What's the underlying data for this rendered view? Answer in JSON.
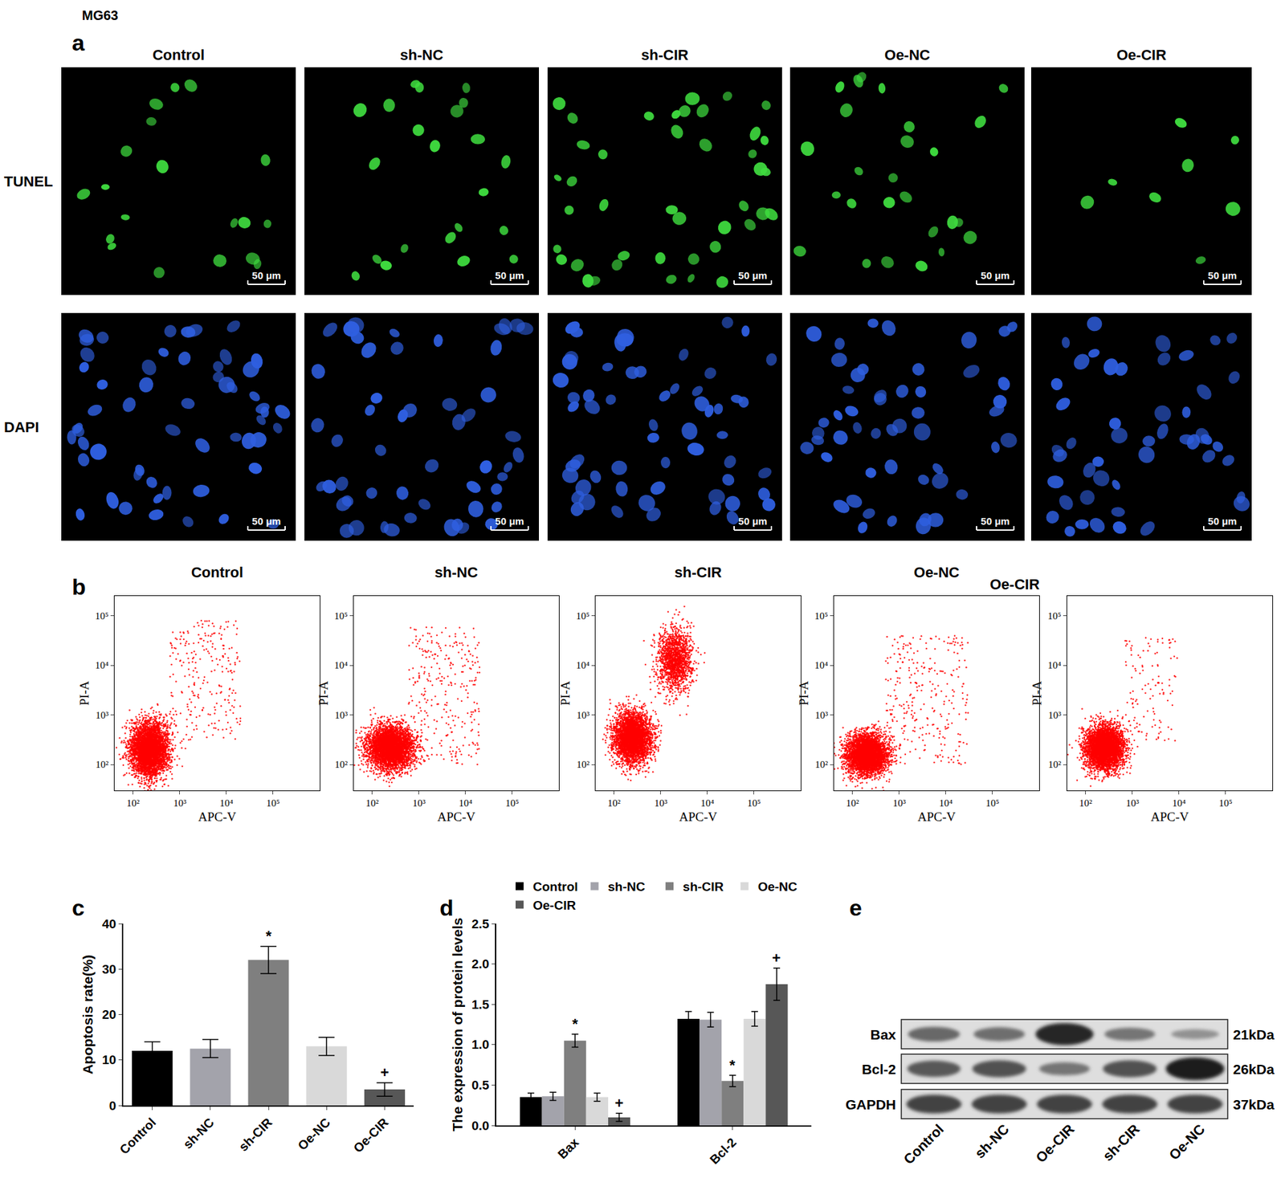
{
  "figure_title": "MG63",
  "micrographs": {
    "panel": "a",
    "columns": [
      "Control",
      "sh-NC",
      "sh-CIR",
      "Oe-NC",
      "Oe-CIR"
    ],
    "rows": [
      {
        "label": "TUNEL",
        "color": "#3fdc3f",
        "cell_counts": [
          19,
          22,
          42,
          26,
          8
        ]
      },
      {
        "label": "DAPI",
        "color": "#2f5fe0",
        "cell_counts": [
          55,
          52,
          58,
          50,
          48
        ]
      }
    ],
    "scale_bar": "50 μm"
  },
  "flow_panel": "b",
  "chart_data": [
    {
      "type": "scatter",
      "title": "Control",
      "x_label": "APC-V",
      "y_label": "PI-A",
      "log": true,
      "grid": false,
      "color": "#ff0000",
      "xlim": [
        40,
        1000000
      ],
      "ylim": [
        30,
        250000
      ],
      "xticks": [
        {
          "value": 100,
          "label": "10²"
        },
        {
          "value": 1000,
          "label": "10³"
        },
        {
          "value": 10000,
          "label": "10⁴"
        },
        {
          "value": 100000,
          "label": "10⁵"
        }
      ],
      "yticks": [
        {
          "value": 100,
          "label": "10²"
        },
        {
          "value": 1000,
          "label": "10³"
        },
        {
          "value": 10000,
          "label": "10⁴"
        },
        {
          "value": 100000,
          "label": "10⁵"
        }
      ],
      "gate": [
        600,
        1000
      ],
      "populations": [
        {
          "kind": "cluster",
          "x_range": [
            70,
            700
          ],
          "y_range": [
            40,
            1000
          ],
          "events": 4000
        },
        {
          "kind": "scatter",
          "x_range": [
            600,
            20000
          ],
          "y_range": [
            300,
            80000
          ],
          "events": 250
        }
      ]
    },
    {
      "type": "scatter",
      "title": "sh-NC",
      "x_label": "APC-V",
      "y_label": "PI-A",
      "log": true,
      "grid": false,
      "color": "#ff0000",
      "xlim": [
        40,
        1000000
      ],
      "ylim": [
        30,
        250000
      ],
      "xticks": [
        {
          "value": 100,
          "label": "10²"
        },
        {
          "value": 1000,
          "label": "10³"
        },
        {
          "value": 10000,
          "label": "10⁴"
        },
        {
          "value": 100000,
          "label": "10⁵"
        }
      ],
      "yticks": [
        {
          "value": 100,
          "label": "10²"
        },
        {
          "value": 1000,
          "label": "10³"
        },
        {
          "value": 10000,
          "label": "10⁴"
        },
        {
          "value": 100000,
          "label": "10⁵"
        }
      ],
      "gate": [
        700,
        1000
      ],
      "populations": [
        {
          "kind": "cluster",
          "x_range": [
            60,
            1000
          ],
          "y_range": [
            60,
            800
          ],
          "events": 4000
        },
        {
          "kind": "scatter",
          "x_range": [
            600,
            20000
          ],
          "y_range": [
            100,
            60000
          ],
          "events": 300
        }
      ]
    },
    {
      "type": "scatter",
      "title": "sh-CIR",
      "x_label": "APC-V",
      "y_label": "PI-A",
      "log": true,
      "grid": false,
      "color": "#ff0000",
      "xlim": [
        40,
        1000000
      ],
      "ylim": [
        30,
        250000
      ],
      "xticks": [
        {
          "value": 100,
          "label": "10²"
        },
        {
          "value": 1000,
          "label": "10³"
        },
        {
          "value": 10000,
          "label": "10⁴"
        },
        {
          "value": 100000,
          "label": "10⁵"
        }
      ],
      "yticks": [
        {
          "value": 100,
          "label": "10²"
        },
        {
          "value": 1000,
          "label": "10³"
        },
        {
          "value": 10000,
          "label": "10⁴"
        },
        {
          "value": 100000,
          "label": "10⁵"
        }
      ],
      "gate": [
        600,
        1000
      ],
      "populations": [
        {
          "kind": "cluster",
          "x_range": [
            80,
            800
          ],
          "y_range": [
            80,
            1500
          ],
          "events": 3500
        },
        {
          "kind": "cluster",
          "x_range": [
            700,
            6000
          ],
          "y_range": [
            2000,
            80000
          ],
          "events": 1500
        }
      ]
    },
    {
      "type": "scatter",
      "title": "Oe-NC",
      "annotations": [
        "Oe-CIR"
      ],
      "x_label": "APC-V",
      "y_label": "PI-A",
      "log": true,
      "grid": false,
      "color": "#ff0000",
      "xlim": [
        40,
        1000000
      ],
      "ylim": [
        30,
        250000
      ],
      "xticks": [
        {
          "value": 100,
          "label": "10²"
        },
        {
          "value": 1000,
          "label": "10³"
        },
        {
          "value": 10000,
          "label": "10⁴"
        },
        {
          "value": 100000,
          "label": "10⁵"
        }
      ],
      "yticks": [
        {
          "value": 100,
          "label": "10²"
        },
        {
          "value": 1000,
          "label": "10³"
        },
        {
          "value": 10000,
          "label": "10⁴"
        },
        {
          "value": 100000,
          "label": "10⁵"
        }
      ],
      "gate": [
        600,
        400
      ],
      "populations": [
        {
          "kind": "cluster",
          "x_range": [
            60,
            700
          ],
          "y_range": [
            50,
            500
          ],
          "events": 4000
        },
        {
          "kind": "scatter",
          "x_range": [
            500,
            30000
          ],
          "y_range": [
            100,
            40000
          ],
          "events": 300
        }
      ]
    },
    {
      "type": "scatter",
      "x_label": "APC-V",
      "y_label": "PI-A",
      "log": true,
      "grid": false,
      "color": "#ff0000",
      "xlim": [
        40,
        1000000
      ],
      "ylim": [
        30,
        250000
      ],
      "xticks": [
        {
          "value": 100,
          "label": "10²"
        },
        {
          "value": 1000,
          "label": "10³"
        },
        {
          "value": 10000,
          "label": "10⁴"
        },
        {
          "value": 100000,
          "label": "10⁵"
        }
      ],
      "yticks": [
        {
          "value": 100,
          "label": "10²"
        },
        {
          "value": 1000,
          "label": "10³"
        },
        {
          "value": 10000,
          "label": "10⁴"
        },
        {
          "value": 100000,
          "label": "10⁵"
        }
      ],
      "gate": [
        750,
        1000
      ],
      "populations": [
        {
          "kind": "cluster",
          "x_range": [
            80,
            800
          ],
          "y_range": [
            60,
            800
          ],
          "events": 4000
        },
        {
          "kind": "scatter",
          "x_range": [
            700,
            10000
          ],
          "y_range": [
            300,
            40000
          ],
          "events": 120
        }
      ]
    },
    {
      "panel": "c",
      "type": "bar",
      "y_label": "Apoptosis rate(%)",
      "grid": false,
      "categories": [
        "Control",
        "sh-NC",
        "sh-CIR",
        "Oe-NC",
        "Oe-CIR"
      ],
      "values": [
        12,
        12.5,
        32,
        13,
        3.5
      ],
      "errors": [
        2,
        2,
        3,
        2,
        1.5
      ],
      "colors": [
        "#000000",
        "#a3a3ab",
        "#7f7f7f",
        "#d9d9d9",
        "#575757"
      ],
      "ylim": [
        0,
        40
      ],
      "yticks": [
        0,
        10,
        20,
        30,
        40
      ],
      "annotations": [
        {
          "category": "sh-CIR",
          "text": "*"
        },
        {
          "category": "Oe-CIR",
          "text": "+"
        }
      ]
    },
    {
      "panel": "d",
      "type": "bar",
      "y_label": "The expression of protein levels",
      "grid": false,
      "legend": "top",
      "categories": [
        "Bax",
        "Bcl-2"
      ],
      "series": [
        {
          "name": "Control",
          "color": "#000000",
          "values": [
            0.35,
            1.32
          ],
          "errors": [
            0.05,
            0.09
          ]
        },
        {
          "name": "sh-NC",
          "color": "#a3a3ab",
          "values": [
            0.36,
            1.31
          ],
          "errors": [
            0.05,
            0.09
          ]
        },
        {
          "name": "sh-CIR",
          "color": "#7f7f7f",
          "values": [
            1.05,
            0.55
          ],
          "errors": [
            0.08,
            0.07
          ]
        },
        {
          "name": "Oe-NC",
          "color": "#d9d9d9",
          "values": [
            0.35,
            1.32
          ],
          "errors": [
            0.05,
            0.09
          ]
        },
        {
          "name": "Oe-CIR",
          "color": "#575757",
          "values": [
            0.1,
            1.75
          ],
          "errors": [
            0.05,
            0.2
          ]
        }
      ],
      "ylim": [
        0,
        2.5
      ],
      "yticks": [
        {
          "value": 0,
          "label": "0.0"
        },
        0.5,
        {
          "value": 1,
          "label": "1.0"
        },
        1.5,
        {
          "value": 2,
          "label": "2.0"
        },
        2.5
      ],
      "annotations": [
        {
          "category": "Bax",
          "series": "sh-CIR",
          "text": "*"
        },
        {
          "category": "Bax",
          "series": "Oe-CIR",
          "text": "+"
        },
        {
          "category": "Bcl-2",
          "series": "sh-CIR",
          "text": "*"
        },
        {
          "category": "Bcl-2",
          "series": "Oe-CIR",
          "text": "+"
        }
      ]
    }
  ],
  "blot": {
    "panel": "e",
    "lanes": [
      "Control",
      "sh-NC",
      "Oe-CIR",
      "sh-CIR",
      "Oe-NC"
    ],
    "bands": [
      {
        "label": "Bax",
        "size": "21kDa",
        "intensity": [
          0.5,
          0.45,
          0.95,
          0.4,
          0.2
        ]
      },
      {
        "label": "Bcl-2",
        "size": "26kDa",
        "intensity": [
          0.6,
          0.65,
          0.4,
          0.65,
          1.0
        ]
      },
      {
        "label": "GAPDH",
        "size": "37kDa",
        "intensity": [
          0.75,
          0.75,
          0.75,
          0.75,
          0.75
        ]
      }
    ]
  }
}
